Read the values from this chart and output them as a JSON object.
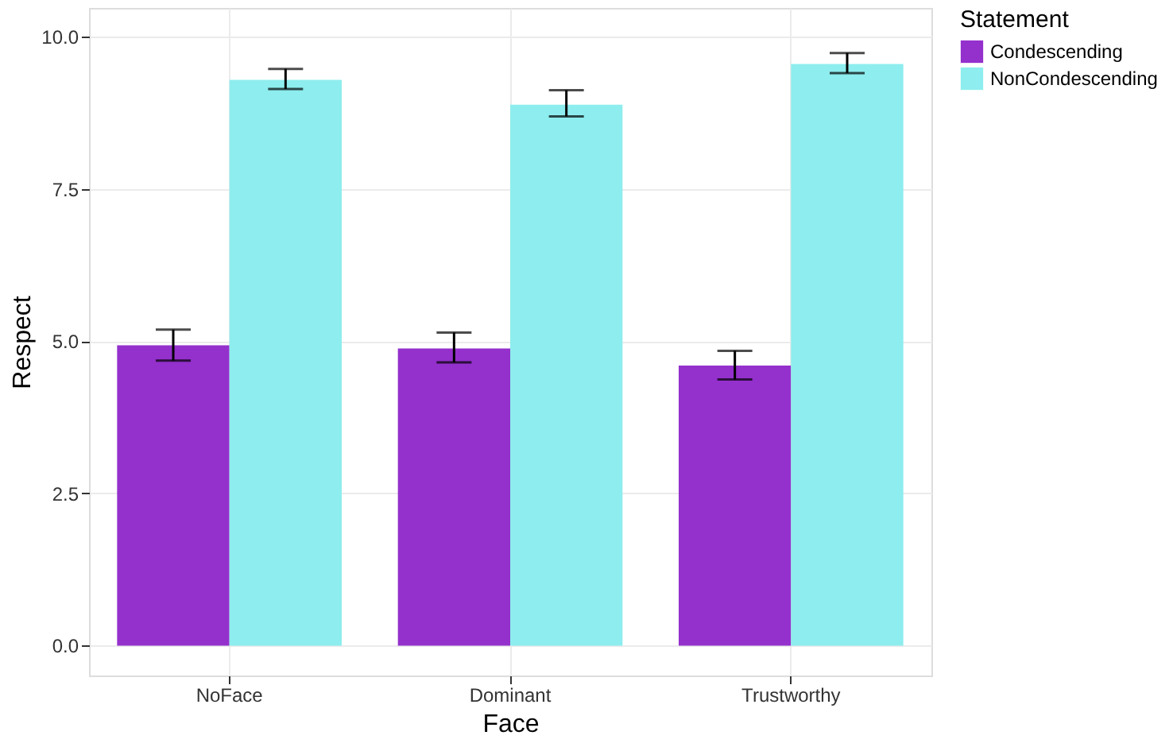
{
  "chart_data": {
    "type": "bar",
    "xlabel": "Face",
    "ylabel": "Respect",
    "legend_title": "Statement",
    "categories": [
      "NoFace",
      "Dominant",
      "Trustworthy"
    ],
    "series": [
      {
        "name": "Condescending",
        "color": "#9430cc",
        "values": [
          4.93,
          4.88,
          4.6
        ],
        "errors": [
          [
            4.68,
            5.19
          ],
          [
            4.65,
            5.14
          ],
          [
            4.37,
            4.84
          ]
        ]
      },
      {
        "name": "NonCondescending",
        "color": "#8eedee",
        "values": [
          9.29,
          8.88,
          9.55
        ],
        "errors": [
          [
            9.14,
            9.47
          ],
          [
            8.69,
            9.12
          ],
          [
            9.4,
            9.73
          ]
        ]
      }
    ],
    "ylim": [
      -0.49,
      10.47
    ],
    "yticks": [
      {
        "value": 0,
        "label": "0.0"
      },
      2.5,
      {
        "value": 5,
        "label": "5.0"
      },
      7.5,
      {
        "value": 10,
        "label": "10.0"
      }
    ],
    "grid": true,
    "legend": "right"
  }
}
